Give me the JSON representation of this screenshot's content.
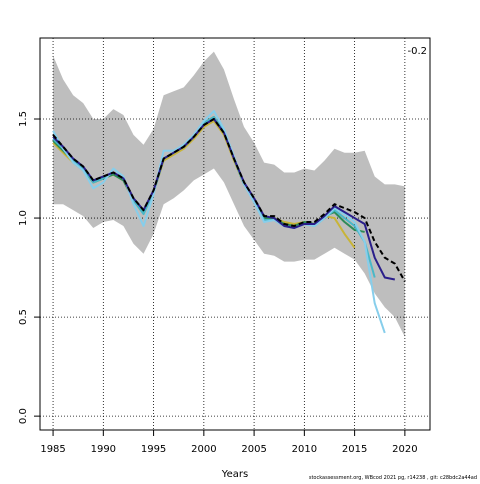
{
  "chart_data": {
    "type": "line",
    "xlabel": "Years",
    "annotation": "-0.2",
    "footer": "stockassessment.org, WBcod 2021 pg, r14238 , git: c28bdc2a44ad",
    "x": [
      1985,
      1986,
      1987,
      1988,
      1989,
      1990,
      1991,
      1992,
      1993,
      1994,
      1995,
      1996,
      1997,
      1998,
      1999,
      2000,
      2001,
      2002,
      2003,
      2004,
      2005,
      2006,
      2007,
      2008,
      2009,
      2010,
      2011,
      2012,
      2013,
      2014,
      2015,
      2016,
      2017,
      2018,
      2019,
      2020
    ],
    "band": {
      "color": "#bebebe",
      "upper": [
        1.82,
        1.7,
        1.62,
        1.58,
        1.5,
        1.5,
        1.55,
        1.52,
        1.42,
        1.37,
        1.45,
        1.62,
        1.64,
        1.66,
        1.72,
        1.79,
        1.84,
        1.75,
        1.6,
        1.46,
        1.38,
        1.28,
        1.27,
        1.23,
        1.23,
        1.25,
        1.24,
        1.29,
        1.35,
        1.33,
        1.33,
        1.34,
        1.21,
        1.17,
        1.17,
        1.16
      ],
      "lower": [
        1.07,
        1.07,
        1.04,
        1.01,
        0.95,
        0.98,
        0.99,
        0.96,
        0.87,
        0.82,
        0.92,
        1.07,
        1.1,
        1.14,
        1.19,
        1.22,
        1.25,
        1.18,
        1.07,
        0.96,
        0.89,
        0.82,
        0.81,
        0.78,
        0.78,
        0.79,
        0.79,
        0.82,
        0.85,
        0.82,
        0.79,
        0.72,
        0.62,
        0.55,
        0.5,
        0.4
      ]
    },
    "series": [
      {
        "color": "#c8b438",
        "values": [
          1.38,
          1.33,
          1.28,
          1.24,
          1.18,
          1.2,
          1.22,
          1.19,
          1.09,
          1.03,
          1.13,
          1.29,
          1.32,
          1.35,
          1.4,
          1.46,
          1.49,
          1.42,
          1.29,
          1.17,
          1.09,
          1.0,
          1.0,
          0.98,
          0.97,
          0.98,
          0.97,
          1.01,
          1.0,
          0.92,
          0.85,
          null,
          null,
          null,
          null,
          null
        ]
      },
      {
        "color": "#2e8b57",
        "values": [
          1.39,
          1.34,
          1.29,
          1.25,
          1.18,
          1.2,
          1.22,
          1.19,
          1.09,
          1.03,
          1.13,
          1.3,
          1.33,
          1.36,
          1.41,
          1.48,
          1.51,
          1.44,
          1.3,
          1.17,
          1.09,
          1.0,
          1.0,
          0.97,
          0.96,
          0.98,
          0.97,
          1.01,
          1.03,
          0.98,
          0.94,
          0.93,
          null,
          null,
          null,
          null
        ]
      },
      {
        "color": "#48b8c8",
        "values": [
          1.4,
          1.35,
          1.29,
          1.25,
          1.18,
          1.2,
          1.23,
          1.2,
          1.09,
          1.02,
          1.13,
          1.3,
          1.33,
          1.36,
          1.41,
          1.48,
          1.51,
          1.44,
          1.3,
          1.17,
          1.09,
          0.99,
          0.99,
          0.96,
          0.95,
          0.97,
          0.96,
          1.0,
          1.04,
          1.0,
          0.96,
          0.88,
          0.7,
          null,
          null,
          null
        ]
      },
      {
        "color": "#87ceeb",
        "values": [
          1.44,
          1.35,
          1.28,
          1.24,
          1.15,
          1.18,
          1.25,
          1.21,
          1.07,
          0.96,
          1.12,
          1.34,
          1.34,
          1.37,
          1.42,
          1.49,
          1.54,
          1.45,
          1.31,
          1.17,
          1.08,
          0.98,
          0.99,
          0.96,
          0.95,
          0.97,
          0.96,
          1.0,
          1.05,
          1.02,
          0.98,
          0.88,
          0.57,
          0.42,
          null,
          null
        ]
      },
      {
        "color": "#2a1e8a",
        "values": [
          1.41,
          1.36,
          1.3,
          1.26,
          1.19,
          1.21,
          1.23,
          1.2,
          1.1,
          1.04,
          1.14,
          1.3,
          1.33,
          1.36,
          1.41,
          1.47,
          1.5,
          1.43,
          1.3,
          1.18,
          1.1,
          1.01,
          1.0,
          0.96,
          0.95,
          0.97,
          0.97,
          1.01,
          1.06,
          1.03,
          1.0,
          0.97,
          0.8,
          0.7,
          0.69,
          null
        ]
      },
      {
        "color": "#000000",
        "dashed": true,
        "values": [
          1.42,
          1.36,
          1.3,
          1.26,
          1.19,
          1.21,
          1.23,
          1.2,
          1.1,
          1.04,
          1.14,
          1.3,
          1.33,
          1.36,
          1.41,
          1.47,
          1.5,
          1.43,
          1.3,
          1.18,
          1.1,
          1.01,
          1.01,
          0.97,
          0.96,
          0.98,
          0.98,
          1.02,
          1.07,
          1.05,
          1.03,
          1.0,
          0.88,
          0.8,
          0.77,
          0.68
        ]
      }
    ],
    "xlim": [
      1983.7,
      2022.5
    ],
    "ylim": [
      -0.07,
      1.909
    ],
    "xticks": [
      1985,
      1990,
      1995,
      2000,
      2005,
      2010,
      2015,
      2020
    ],
    "yticks": [
      {
        "value": 0,
        "label": "0.0"
      },
      0.5,
      {
        "value": 1,
        "label": "1.0"
      },
      1.5
    ],
    "grid": true
  }
}
